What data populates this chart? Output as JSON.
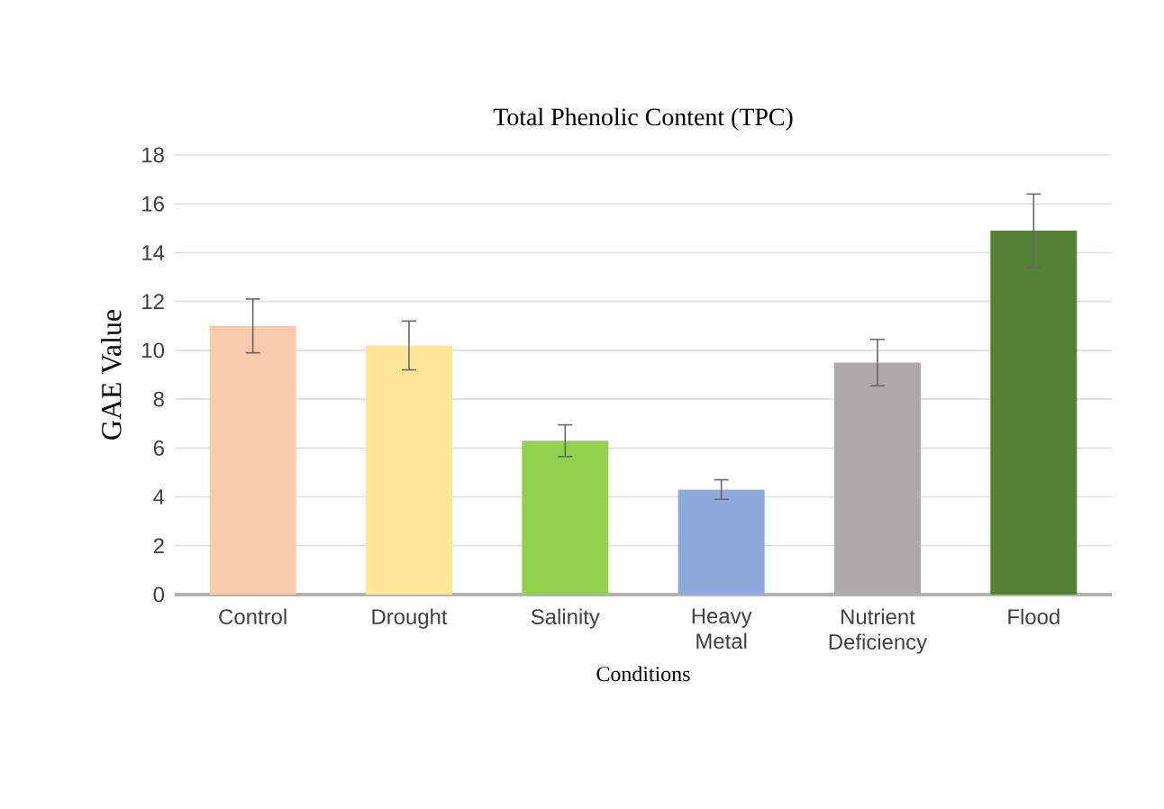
{
  "chart_data": {
    "type": "bar",
    "title": "Total Phenolic Content (TPC)",
    "xlabel": "Conditions",
    "ylabel": "GAE Value",
    "categories": [
      "Control",
      "Drought",
      "Salinity",
      "Heavy Metal",
      "Nutrient Deficiency",
      "Flood"
    ],
    "values": [
      11.0,
      10.2,
      6.3,
      4.3,
      9.5,
      14.9
    ],
    "errors": [
      1.1,
      1.0,
      0.65,
      0.4,
      0.95,
      1.5
    ],
    "colors": [
      "#f8cbad",
      "#ffe699",
      "#92d050",
      "#8eaadb",
      "#aeaaaa",
      "#548235"
    ],
    "ylim": [
      0,
      18
    ],
    "yticks": [
      0,
      2,
      4,
      6,
      8,
      10,
      12,
      14,
      16,
      18
    ],
    "grid": "y"
  }
}
